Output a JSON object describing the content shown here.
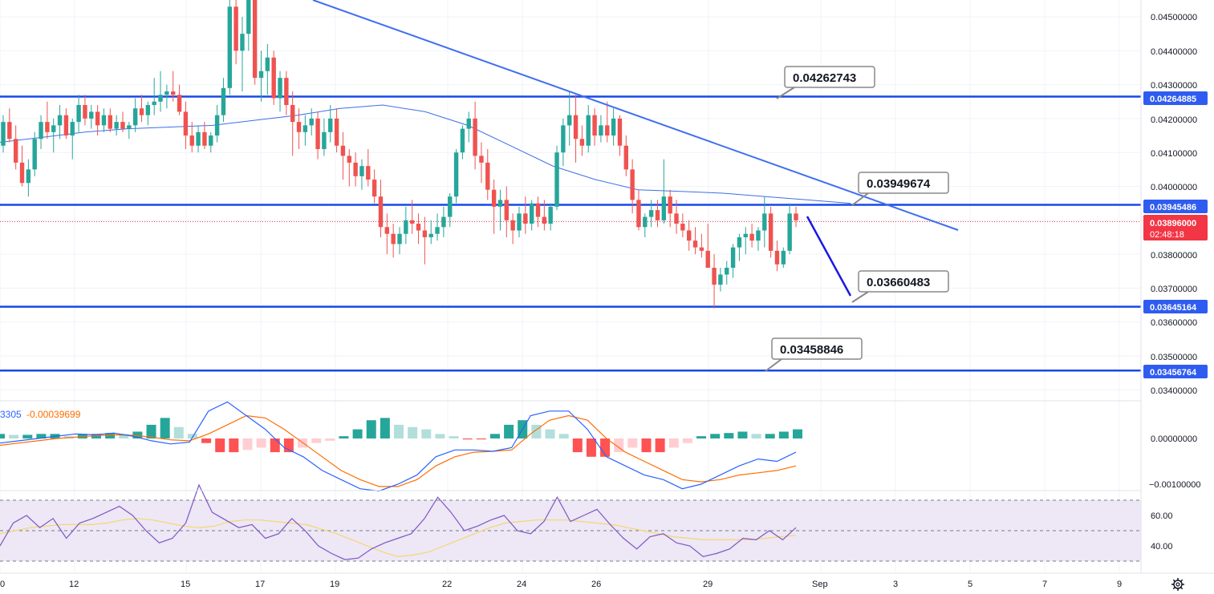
{
  "colors": {
    "up": "#26a69a",
    "down": "#ef5350",
    "level_line": "#1848e8",
    "trendline": "#3f6ef0",
    "ma_line": "#3d6ee8",
    "macd_line": "#2962ff",
    "signal_line": "#ff6d00",
    "hist_up_strong": "#26a69a",
    "hist_up_weak": "#b2dfdb",
    "hist_down_strong": "#ff5252",
    "hist_down_weak": "#ffcdd2",
    "rsi_line": "#7e57c2",
    "rsi_ma": "#f5d76e",
    "rsi_band": "#ede7f6",
    "last_price_tag": "#f23645",
    "level_tag": "#2f5cf0",
    "projection_arrow": "#1a1adf"
  },
  "price_axis": {
    "labels": [
      "0.04500000",
      "0.04400000",
      "0.04300000",
      "0.04200000",
      "0.04100000",
      "0.04000000",
      "0.03800000",
      "0.03700000",
      "0.03600000",
      "0.03500000",
      "0.03400000"
    ],
    "values": [
      0.045,
      0.044,
      0.043,
      0.042,
      0.041,
      0.04,
      0.038,
      0.037,
      0.036,
      0.035,
      0.034
    ]
  },
  "macd_axis": {
    "labels": [
      "0.00000000",
      "−0.00100000"
    ],
    "values": [
      0.0,
      -0.001
    ]
  },
  "rsi_axis": {
    "labels": [
      "60.00",
      "40.00"
    ],
    "values": [
      60,
      40
    ]
  },
  "time_axis": {
    "labels": [
      "0",
      "12",
      "15",
      "17",
      "19",
      "22",
      "24",
      "26",
      "29",
      "Sep",
      "3",
      "5",
      "7",
      "9"
    ]
  },
  "level_tags": {
    "r1": "0.04264885",
    "r2": "0.03945486",
    "s1": "0.03645164",
    "s2": "0.03456764"
  },
  "last_price": {
    "price": "0.03896000",
    "countdown": "02:48:18",
    "value": 0.03896
  },
  "callouts": {
    "c1": "0.04262743",
    "c2": "0.03949674",
    "c3": "0.03660483",
    "c4": "0.03458846"
  },
  "macd_legend": {
    "macd_value": "3305",
    "signal_value": "-0.00039699"
  },
  "chart_data": {
    "type": "candlestick",
    "title": "",
    "levels": [
      0.04264885,
      0.03945486,
      0.03645164,
      0.03456764
    ],
    "trendline": {
      "from": 0.0455,
      "to": 0.0387
    },
    "candles": [
      [
        0.0412,
        0.0421,
        0.041,
        0.0419
      ],
      [
        0.0419,
        0.0423,
        0.0413,
        0.0414
      ],
      [
        0.0414,
        0.0418,
        0.0405,
        0.0407
      ],
      [
        0.0407,
        0.0412,
        0.04,
        0.0401
      ],
      [
        0.0401,
        0.0408,
        0.0397,
        0.0405
      ],
      [
        0.0405,
        0.0416,
        0.0403,
        0.0414
      ],
      [
        0.0414,
        0.0421,
        0.0411,
        0.0419
      ],
      [
        0.0419,
        0.0425,
        0.0414,
        0.0416
      ],
      [
        0.0416,
        0.042,
        0.041,
        0.0418
      ],
      [
        0.0418,
        0.0424,
        0.0414,
        0.0421
      ],
      [
        0.0421,
        0.0423,
        0.0414,
        0.0415
      ],
      [
        0.0415,
        0.042,
        0.0408,
        0.0419
      ],
      [
        0.0419,
        0.0427,
        0.0416,
        0.0424
      ],
      [
        0.0424,
        0.0427,
        0.0418,
        0.042
      ],
      [
        0.042,
        0.0424,
        0.0417,
        0.0422
      ],
      [
        0.0422,
        0.0424,
        0.0415,
        0.0418
      ],
      [
        0.0418,
        0.0423,
        0.0416,
        0.0421
      ],
      [
        0.0421,
        0.0423,
        0.0416,
        0.0417
      ],
      [
        0.0417,
        0.0421,
        0.0415,
        0.0419
      ],
      [
        0.0419,
        0.0422,
        0.0416,
        0.0417
      ],
      [
        0.0417,
        0.0419,
        0.0414,
        0.0418
      ],
      [
        0.0418,
        0.0426,
        0.0416,
        0.0423
      ],
      [
        0.0423,
        0.0427,
        0.0419,
        0.0421
      ],
      [
        0.0421,
        0.0425,
        0.0418,
        0.0424
      ],
      [
        0.0424,
        0.0432,
        0.0421,
        0.0425
      ],
      [
        0.0425,
        0.0434,
        0.0422,
        0.0427
      ],
      [
        0.0427,
        0.043,
        0.0423,
        0.0428
      ],
      [
        0.0428,
        0.0434,
        0.0425,
        0.0427
      ],
      [
        0.0427,
        0.043,
        0.0421,
        0.0422
      ],
      [
        0.0422,
        0.0425,
        0.0411,
        0.0415
      ],
      [
        0.0415,
        0.0419,
        0.041,
        0.0412
      ],
      [
        0.0412,
        0.0418,
        0.041,
        0.0416
      ],
      [
        0.0416,
        0.0419,
        0.0411,
        0.0412
      ],
      [
        0.0412,
        0.0416,
        0.041,
        0.0415
      ],
      [
        0.0415,
        0.0424,
        0.0413,
        0.0421
      ],
      [
        0.0421,
        0.0432,
        0.0419,
        0.0429
      ],
      [
        0.0429,
        0.0455,
        0.0427,
        0.0453
      ],
      [
        0.0453,
        0.0458,
        0.0436,
        0.044
      ],
      [
        0.044,
        0.045,
        0.0428,
        0.0445
      ],
      [
        0.0445,
        0.0457,
        0.044,
        0.0455
      ],
      [
        0.0455,
        0.0457,
        0.043,
        0.0432
      ],
      [
        0.0432,
        0.044,
        0.0425,
        0.0434
      ],
      [
        0.0434,
        0.0442,
        0.0427,
        0.0438
      ],
      [
        0.0438,
        0.044,
        0.0424,
        0.0426
      ],
      [
        0.0426,
        0.0434,
        0.0422,
        0.0432
      ],
      [
        0.0432,
        0.0434,
        0.0421,
        0.0424
      ],
      [
        0.0424,
        0.0428,
        0.0409,
        0.0419
      ],
      [
        0.0419,
        0.0423,
        0.0411,
        0.0416
      ],
      [
        0.0416,
        0.0421,
        0.0412,
        0.0418
      ],
      [
        0.0418,
        0.0423,
        0.0415,
        0.042
      ],
      [
        0.042,
        0.0422,
        0.0408,
        0.0411
      ],
      [
        0.0411,
        0.042,
        0.0409,
        0.0416
      ],
      [
        0.0416,
        0.0424,
        0.0413,
        0.042
      ],
      [
        0.042,
        0.0423,
        0.041,
        0.0412
      ],
      [
        0.0412,
        0.0416,
        0.0402,
        0.0409
      ],
      [
        0.0409,
        0.0411,
        0.04,
        0.0407
      ],
      [
        0.0407,
        0.041,
        0.04,
        0.0403
      ],
      [
        0.0403,
        0.0408,
        0.0399,
        0.0406
      ],
      [
        0.0406,
        0.0411,
        0.04,
        0.0402
      ],
      [
        0.0402,
        0.0405,
        0.0395,
        0.0397
      ],
      [
        0.0397,
        0.0402,
        0.0385,
        0.0388
      ],
      [
        0.0388,
        0.0392,
        0.038,
        0.0386
      ],
      [
        0.0386,
        0.0389,
        0.0379,
        0.0383
      ],
      [
        0.0383,
        0.0388,
        0.038,
        0.0386
      ],
      [
        0.0386,
        0.0394,
        0.0383,
        0.039
      ],
      [
        0.039,
        0.0396,
        0.0386,
        0.0389
      ],
      [
        0.0389,
        0.0392,
        0.0383,
        0.0387
      ],
      [
        0.0387,
        0.0391,
        0.0377,
        0.0385
      ],
      [
        0.0385,
        0.039,
        0.0383,
        0.0386
      ],
      [
        0.0386,
        0.0392,
        0.0384,
        0.0388
      ],
      [
        0.0388,
        0.0394,
        0.0385,
        0.0391
      ],
      [
        0.0391,
        0.0398,
        0.0388,
        0.0397
      ],
      [
        0.0397,
        0.0411,
        0.0395,
        0.041
      ],
      [
        0.041,
        0.0418,
        0.0408,
        0.0417
      ],
      [
        0.0417,
        0.0422,
        0.0413,
        0.042
      ],
      [
        0.042,
        0.0425,
        0.0405,
        0.0409
      ],
      [
        0.0409,
        0.0413,
        0.0401,
        0.0407
      ],
      [
        0.0407,
        0.0411,
        0.0396,
        0.0399
      ],
      [
        0.0399,
        0.0402,
        0.0386,
        0.0394
      ],
      [
        0.0394,
        0.0399,
        0.0387,
        0.0396
      ],
      [
        0.0396,
        0.04,
        0.0385,
        0.039
      ],
      [
        0.039,
        0.0392,
        0.0383,
        0.0387
      ],
      [
        0.0387,
        0.0394,
        0.0385,
        0.0392
      ],
      [
        0.0392,
        0.0397,
        0.0386,
        0.0389
      ],
      [
        0.0389,
        0.0396,
        0.0387,
        0.0395
      ],
      [
        0.0395,
        0.0397,
        0.0388,
        0.0391
      ],
      [
        0.0391,
        0.0396,
        0.0387,
        0.0389
      ],
      [
        0.0389,
        0.0395,
        0.0387,
        0.0394
      ],
      [
        0.0394,
        0.0412,
        0.0393,
        0.041
      ],
      [
        0.041,
        0.042,
        0.0406,
        0.0418
      ],
      [
        0.0418,
        0.0428,
        0.0412,
        0.0421
      ],
      [
        0.0421,
        0.0427,
        0.0407,
        0.0414
      ],
      [
        0.0414,
        0.0418,
        0.0409,
        0.0412
      ],
      [
        0.0412,
        0.0424,
        0.041,
        0.0421
      ],
      [
        0.0421,
        0.0423,
        0.0412,
        0.0415
      ],
      [
        0.0415,
        0.0421,
        0.0413,
        0.0418
      ],
      [
        0.0418,
        0.0425,
        0.0413,
        0.0415
      ],
      [
        0.0415,
        0.0423,
        0.0412,
        0.042
      ],
      [
        0.042,
        0.0421,
        0.0409,
        0.0412
      ],
      [
        0.0412,
        0.0415,
        0.0403,
        0.0405
      ],
      [
        0.0405,
        0.0408,
        0.0392,
        0.0396
      ],
      [
        0.0396,
        0.0399,
        0.0387,
        0.0388
      ],
      [
        0.0388,
        0.0392,
        0.0385,
        0.0391
      ],
      [
        0.0391,
        0.0396,
        0.0388,
        0.0393
      ],
      [
        0.0393,
        0.0396,
        0.0388,
        0.039
      ],
      [
        0.039,
        0.0408,
        0.0389,
        0.0397
      ],
      [
        0.0397,
        0.0399,
        0.0388,
        0.0392
      ],
      [
        0.0392,
        0.0396,
        0.0386,
        0.0389
      ],
      [
        0.0389,
        0.0392,
        0.0385,
        0.0387
      ],
      [
        0.0387,
        0.039,
        0.0381,
        0.0384
      ],
      [
        0.0384,
        0.0388,
        0.038,
        0.0382
      ],
      [
        0.0382,
        0.0386,
        0.0379,
        0.0381
      ],
      [
        0.0381,
        0.0389,
        0.0376,
        0.0376
      ],
      [
        0.0376,
        0.038,
        0.0364,
        0.0371
      ],
      [
        0.0371,
        0.0376,
        0.0369,
        0.0374
      ],
      [
        0.0374,
        0.0378,
        0.0371,
        0.0376
      ],
      [
        0.0376,
        0.0383,
        0.0373,
        0.0382
      ],
      [
        0.0382,
        0.0386,
        0.0378,
        0.0385
      ],
      [
        0.0385,
        0.0388,
        0.038,
        0.0386
      ],
      [
        0.0386,
        0.0389,
        0.0382,
        0.0384
      ],
      [
        0.0384,
        0.0388,
        0.0381,
        0.0387
      ],
      [
        0.0387,
        0.0397,
        0.0382,
        0.0392
      ],
      [
        0.0392,
        0.0394,
        0.0379,
        0.0381
      ],
      [
        0.0381,
        0.0384,
        0.0375,
        0.0377
      ],
      [
        0.0377,
        0.0382,
        0.0376,
        0.0381
      ],
      [
        0.0381,
        0.0395,
        0.038,
        0.0392
      ],
      [
        0.0392,
        0.0394,
        0.0388,
        0.039
      ]
    ],
    "ma": [
      0.0413,
      0.04145,
      0.0416,
      0.0417,
      0.04175,
      0.0418,
      0.04195,
      0.0421,
      0.0423,
      0.0424,
      0.0422,
      0.0418,
      0.0412,
      0.0406,
      0.0402,
      0.0399,
      0.03985,
      0.0398,
      0.0397,
      0.0396,
      0.0395
    ],
    "macd": {
      "x_range": [
        0.0,
        1.0
      ],
      "macd_line": [
        -0.0001,
        -5e-05,
        0.0,
        5e-05,
        0.0001,
        8e-05,
        0.00012,
        5e-05,
        -5e-05,
        -0.00012,
        -8e-05,
        0.0006,
        0.0008,
        0.0005,
        0.0002,
        -0.0002,
        -0.0004,
        -0.0007,
        -0.0009,
        -0.0011,
        -0.00115,
        -0.001,
        -0.0008,
        -0.0004,
        -0.00025,
        -0.00025,
        -0.00028,
        -0.0002,
        0.0005,
        0.0006,
        0.0006,
        0.0002,
        -0.0004,
        -0.0006,
        -0.0008,
        -0.0009,
        -0.0011,
        -0.001,
        -0.0008,
        -0.0006,
        -0.00045,
        -0.0005,
        -0.0003
      ],
      "signal_line": [
        -0.00015,
        -0.0001,
        -5e-05,
        0.0,
        3e-05,
        6e-05,
        8e-05,
        7e-05,
        3e-05,
        -3e-05,
        -5e-05,
        0.0001,
        0.0003,
        0.0005,
        0.00045,
        0.0002,
        -0.0001,
        -0.0004,
        -0.0007,
        -0.0009,
        -0.00105,
        -0.00105,
        -0.0009,
        -0.0006,
        -0.0004,
        -0.0003,
        -0.00028,
        -0.00025,
        0.0001,
        0.0004,
        0.0005,
        0.0004,
        0.0,
        -0.0003,
        -0.0005,
        -0.0007,
        -0.0009,
        -0.00095,
        -0.0009,
        -0.0008,
        -0.00075,
        -0.0007,
        -0.0006
      ],
      "histogram": [
        0.0001,
        8e-05,
        8e-05,
        0.0001,
        0.0001,
        5e-05,
        0.0001,
        0.0001,
        0.00012,
        0.0001,
        0.00015,
        0.0003,
        0.00045,
        0.00025,
        0.0001,
        -0.0001,
        -0.0003,
        -0.0003,
        -0.00025,
        -0.0002,
        -0.0003,
        -0.0003,
        -0.0002,
        -0.0001,
        -5e-05,
        5e-05,
        0.0002,
        0.0004,
        0.00045,
        0.0003,
        0.00025,
        0.0002,
        0.0001,
        5e-05,
        -2e-05,
        -2e-05,
        0.0001,
        0.0003,
        0.0004,
        0.0003,
        0.0002,
        0.0001,
        -0.0003,
        -0.0004,
        -0.0004,
        -0.0003,
        -0.0002,
        -0.0003,
        -0.0003,
        -0.0002,
        -0.0001,
        5e-05,
        0.0001,
        0.00012,
        0.00015,
        0.0001,
        0.0001,
        0.00015,
        0.0002
      ]
    },
    "rsi": {
      "upper": 70,
      "lower": 30,
      "middle": 50,
      "rsi_line": [
        40,
        55,
        60,
        52,
        58,
        45,
        55,
        58,
        62,
        66,
        60,
        50,
        42,
        45,
        55,
        80,
        62,
        57,
        52,
        54,
        45,
        48,
        58,
        50,
        40,
        35,
        31,
        32,
        38,
        42,
        45,
        48,
        58,
        72,
        62,
        50,
        53,
        57,
        60,
        50,
        48,
        56,
        72,
        56,
        60,
        64,
        54,
        45,
        38,
        46,
        48,
        42,
        40,
        33,
        35,
        38,
        45,
        44,
        50,
        44,
        52
      ],
      "ma_line": [
        48,
        50,
        52,
        53,
        54,
        54,
        54,
        55,
        57,
        58,
        57,
        55,
        53,
        52,
        53,
        56,
        57,
        57,
        56,
        55,
        54,
        51,
        48,
        44,
        40,
        36,
        33,
        34,
        36,
        40,
        44,
        48,
        52,
        55,
        56,
        57,
        57,
        57,
        56,
        55,
        54,
        52,
        50,
        48,
        46,
        45,
        44,
        44,
        44,
        44,
        45,
        46,
        47
      ]
    }
  }
}
